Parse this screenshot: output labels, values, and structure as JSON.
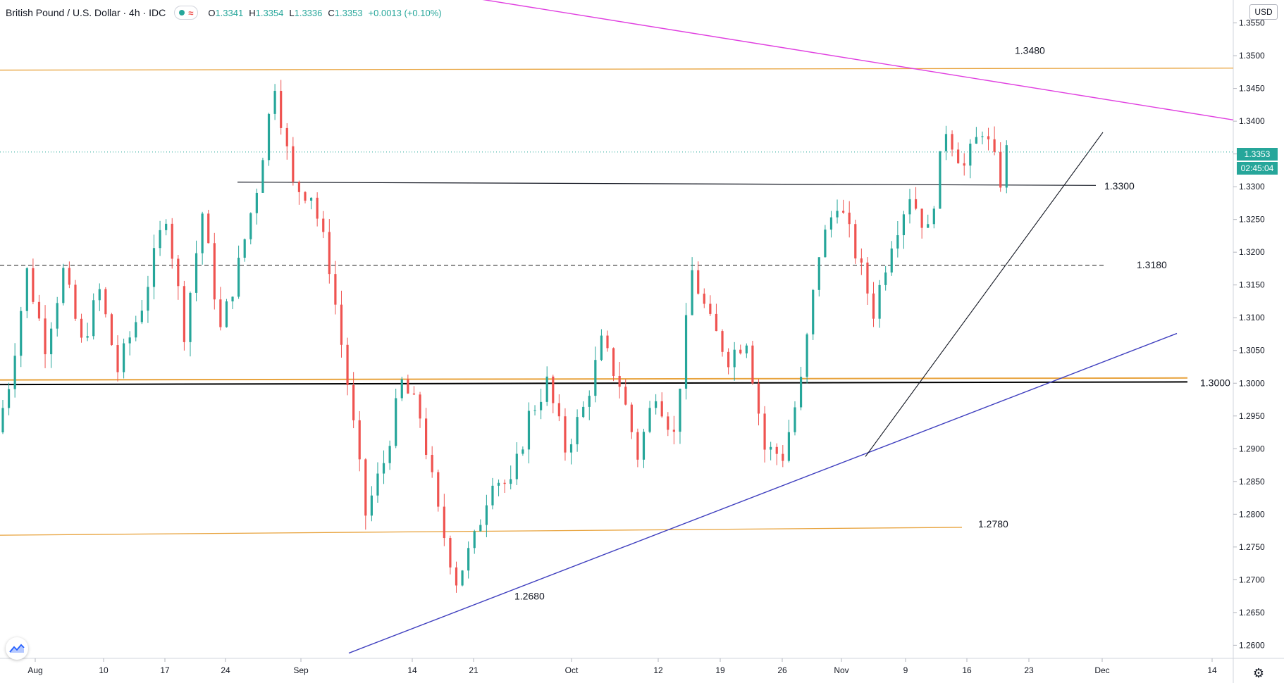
{
  "header": {
    "symbol": "British Pound / U.S. Dollar · 4h · IDC",
    "ohlc": [
      {
        "k": "O",
        "v": "1.3341"
      },
      {
        "k": "H",
        "v": "1.3354"
      },
      {
        "k": "L",
        "v": "1.3336"
      },
      {
        "k": "C",
        "v": "1.3353"
      }
    ],
    "change": "+0.0013 (+0.10%)"
  },
  "axis": {
    "currency": "USD",
    "price_label": "1.3353",
    "countdown": "02:45:04"
  },
  "colors": {
    "up": "#26a69a",
    "down": "#ef5350",
    "orange_level": "#e8a33d",
    "magenta_line": "#e040e0",
    "blue_trend": "#3f3fbf",
    "price_tag": "#26a69a"
  },
  "icons": {
    "logo": "tradingview-logo-icon",
    "settings": "gear-icon"
  },
  "chart_data": {
    "type": "candlestick",
    "title": "British Pound / U.S. Dollar · 4h · IDC",
    "yrange": [
      1.258,
      1.3585
    ],
    "y_ticks": [
      "1.3550",
      "1.3500",
      "1.3450",
      "1.3400",
      "1.3350",
      "1.3300",
      "1.3250",
      "1.3200",
      "1.3150",
      "1.3100",
      "1.3050",
      "1.3000",
      "1.2950",
      "1.2900",
      "1.2850",
      "1.2800",
      "1.2750",
      "1.2700",
      "1.2650",
      "1.2600"
    ],
    "x_ticks": [
      "Aug",
      "10",
      "17",
      "24",
      "Sep",
      "14",
      "21",
      "Oct",
      "12",
      "19",
      "26",
      "Nov",
      "9",
      "16",
      "23",
      "Dec",
      "14"
    ],
    "path_points": [
      {
        "t": 0,
        "p": 1.2925
      },
      {
        "t": 2,
        "p": 1.3
      },
      {
        "t": 5,
        "p": 1.317
      },
      {
        "t": 8,
        "p": 1.306
      },
      {
        "t": 11,
        "p": 1.317
      },
      {
        "t": 14,
        "p": 1.306
      },
      {
        "t": 17,
        "p": 1.314
      },
      {
        "t": 20,
        "p": 1.302
      },
      {
        "t": 24,
        "p": 1.312
      },
      {
        "t": 28,
        "p": 1.326
      },
      {
        "t": 31,
        "p": 1.308
      },
      {
        "t": 34,
        "p": 1.326
      },
      {
        "t": 37,
        "p": 1.308
      },
      {
        "t": 40,
        "p": 1.318
      },
      {
        "t": 43,
        "p": 1.33
      },
      {
        "t": 46,
        "p": 1.346
      },
      {
        "t": 49,
        "p": 1.33
      },
      {
        "t": 52,
        "p": 1.329
      },
      {
        "t": 55,
        "p": 1.318
      },
      {
        "t": 58,
        "p": 1.3
      },
      {
        "t": 61,
        "p": 1.28
      },
      {
        "t": 64,
        "p": 1.288
      },
      {
        "t": 67,
        "p": 1.3
      },
      {
        "t": 70,
        "p": 1.295
      },
      {
        "t": 73,
        "p": 1.28
      },
      {
        "t": 76,
        "p": 1.27
      },
      {
        "t": 79,
        "p": 1.276
      },
      {
        "t": 82,
        "p": 1.286
      },
      {
        "t": 85,
        "p": 1.284
      },
      {
        "t": 88,
        "p": 1.295
      },
      {
        "t": 91,
        "p": 1.3
      },
      {
        "t": 94,
        "p": 1.29
      },
      {
        "t": 97,
        "p": 1.296
      },
      {
        "t": 100,
        "p": 1.306
      },
      {
        "t": 103,
        "p": 1.3
      },
      {
        "t": 106,
        "p": 1.289
      },
      {
        "t": 109,
        "p": 1.299
      },
      {
        "t": 112,
        "p": 1.292
      },
      {
        "t": 115,
        "p": 1.317
      },
      {
        "t": 118,
        "p": 1.309
      },
      {
        "t": 121,
        "p": 1.304
      },
      {
        "t": 124,
        "p": 1.307
      },
      {
        "t": 127,
        "p": 1.29
      },
      {
        "t": 130,
        "p": 1.289
      },
      {
        "t": 133,
        "p": 1.3
      },
      {
        "t": 136,
        "p": 1.32
      },
      {
        "t": 139,
        "p": 1.328
      },
      {
        "t": 142,
        "p": 1.32
      },
      {
        "t": 145,
        "p": 1.311
      },
      {
        "t": 148,
        "p": 1.322
      },
      {
        "t": 151,
        "p": 1.329
      },
      {
        "t": 154,
        "p": 1.323
      },
      {
        "t": 157,
        "p": 1.339
      },
      {
        "t": 160,
        "p": 1.333
      },
      {
        "t": 163,
        "p": 1.339
      },
      {
        "t": 166,
        "p": 1.331
      },
      {
        "t": 167,
        "p": 1.3353
      }
    ],
    "levels": [
      {
        "label": "1.3480",
        "value": 1.348
      },
      {
        "label": "1.3300",
        "value": 1.33
      },
      {
        "label": "1.3180",
        "value": 1.318
      },
      {
        "label": "1.3000",
        "value": 1.3
      },
      {
        "label": "1.2780",
        "value": 1.278
      }
    ],
    "annotations": [
      {
        "label": "1.2680",
        "value": 1.268
      }
    ],
    "last_price": 1.3353
  }
}
